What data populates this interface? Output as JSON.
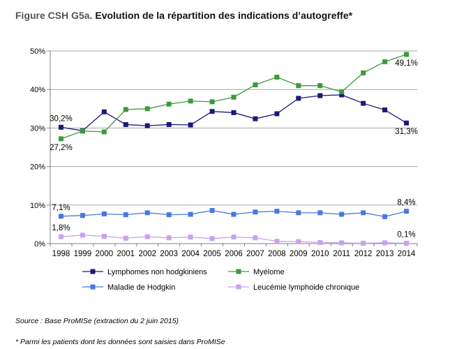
{
  "figure_label": "Figure CSH G5a.",
  "figure_title": "Evolution de la répartition des indications d’autogreffe*",
  "source_note": "Source : Base ProMISe (extraction du 2 juin 2015)",
  "footnote": "* Parmi les patients dont les données sont saisies dans ProMISe",
  "chart_data": {
    "type": "line",
    "categories": [
      "1998",
      "1999",
      "2000",
      "2001",
      "2002",
      "2003",
      "2004",
      "2005",
      "2006",
      "2007",
      "2008",
      "2009",
      "2010",
      "2011",
      "2012",
      "2013",
      "2014"
    ],
    "ylim": [
      0,
      50
    ],
    "yticks": [
      0,
      10,
      20,
      30,
      40,
      50
    ],
    "ytick_labels": [
      "0%",
      "10%",
      "20%",
      "30%",
      "40%",
      "50%"
    ],
    "grid": true,
    "legend_position": "bottom",
    "series": [
      {
        "name": "Lymphomes non hodgkiniens",
        "color": "#1a1a7a",
        "values": [
          30.2,
          29.3,
          34.2,
          30.9,
          30.6,
          30.9,
          30.8,
          34.3,
          34.0,
          32.4,
          33.7,
          37.7,
          38.4,
          38.6,
          36.4,
          34.7,
          31.3
        ]
      },
      {
        "name": "Myélome",
        "color": "#3b9b3b",
        "values": [
          27.2,
          29.2,
          29.0,
          34.8,
          35.0,
          36.2,
          37.0,
          36.8,
          38.0,
          41.2,
          43.2,
          41.0,
          41.0,
          39.4,
          44.3,
          47.2,
          49.1
        ]
      },
      {
        "name": "Maladie de Hodgkin",
        "color": "#4a78e0",
        "values": [
          7.1,
          7.3,
          7.7,
          7.5,
          8.0,
          7.5,
          7.6,
          8.6,
          7.6,
          8.2,
          8.4,
          8.0,
          8.0,
          7.6,
          8.0,
          7.0,
          8.4
        ]
      },
      {
        "name": "Leucémie lymphoide chronique",
        "color": "#c8a2ee",
        "values": [
          1.8,
          2.2,
          1.9,
          1.4,
          1.8,
          1.5,
          1.7,
          1.3,
          1.7,
          1.5,
          0.6,
          0.5,
          0.3,
          0.2,
          0.1,
          0.2,
          0.1
        ]
      }
    ],
    "annotations": [
      {
        "series": 0,
        "index": 0,
        "text": "30,2%",
        "pos": "above"
      },
      {
        "series": 1,
        "index": 0,
        "text": "27,2%",
        "pos": "below"
      },
      {
        "series": 2,
        "index": 0,
        "text": "7,1%",
        "pos": "above"
      },
      {
        "series": 3,
        "index": 0,
        "text": "1,8%",
        "pos": "above"
      },
      {
        "series": 1,
        "index": 16,
        "text": "49,1%",
        "pos": "below"
      },
      {
        "series": 0,
        "index": 16,
        "text": "31,3%",
        "pos": "below"
      },
      {
        "series": 2,
        "index": 16,
        "text": "8,4%",
        "pos": "above"
      },
      {
        "series": 3,
        "index": 16,
        "text": "0,1%",
        "pos": "above"
      }
    ]
  }
}
